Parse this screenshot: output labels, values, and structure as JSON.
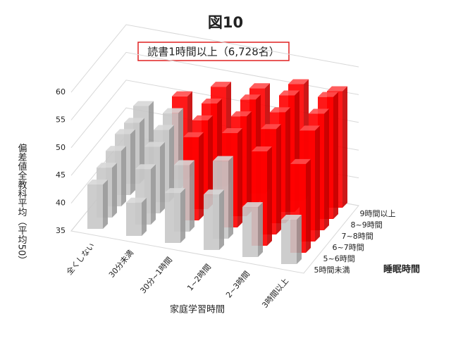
{
  "chart_data": {
    "type": "bar3d",
    "title": "図10",
    "subtitle": "読書1時間以上（6,728名）",
    "ylabel": "偏差値全教科平均（平均50）",
    "xlabel": "家庭学習時間",
    "zlabel": "睡眠時間",
    "categories": [
      "全くしない",
      "30分未満",
      "30分~1時間",
      "1~2時間",
      "2~3時間",
      "3時間以上"
    ],
    "ylim": [
      35,
      60
    ],
    "yticks": [
      35,
      40,
      45,
      50,
      55,
      60
    ],
    "grid": true,
    "series": [
      {
        "name": "5時間未満",
        "values": [
          43,
          41,
          44,
          45,
          44,
          43
        ],
        "colors": [
          "#c8c8c8",
          "#c8c8c8",
          "#c8c8c8",
          "#c8c8c8",
          "#c8c8c8",
          "#c8c8c8"
        ]
      },
      {
        "name": "5~6時間",
        "values": [
          44,
          45,
          47,
          49,
          52,
          51
        ],
        "colors": [
          "#c8c8c8",
          "#c8c8c8",
          "#c8c8c8",
          "#c8c8c8",
          "#ff0000",
          "#ff0000"
        ]
      },
      {
        "name": "6~7時間",
        "values": [
          45,
          47,
          50,
          52,
          54,
          55
        ],
        "colors": [
          "#c8c8c8",
          "#c8c8c8",
          "#ff0000",
          "#ff0000",
          "#ff0000",
          "#ff0000"
        ]
      },
      {
        "name": "7~8時間",
        "values": [
          46,
          48,
          51,
          53,
          55,
          56
        ],
        "colors": [
          "#c8c8c8",
          "#c8c8c8",
          "#ff0000",
          "#ff0000",
          "#ff0000",
          "#ff0000"
        ]
      },
      {
        "name": "8~9時間",
        "values": [
          46,
          49,
          52,
          54,
          56,
          57
        ],
        "colors": [
          "#c8c8c8",
          "#c8c8c8",
          "#ff0000",
          "#ff0000",
          "#ff0000",
          "#ff0000"
        ]
      },
      {
        "name": "9時間以上",
        "values": [
          47,
          50,
          53,
          54,
          56,
          56
        ],
        "colors": [
          "#c8c8c8",
          "#ff0000",
          "#ff0000",
          "#ff0000",
          "#ff0000",
          "#ff0000"
        ]
      }
    ]
  }
}
